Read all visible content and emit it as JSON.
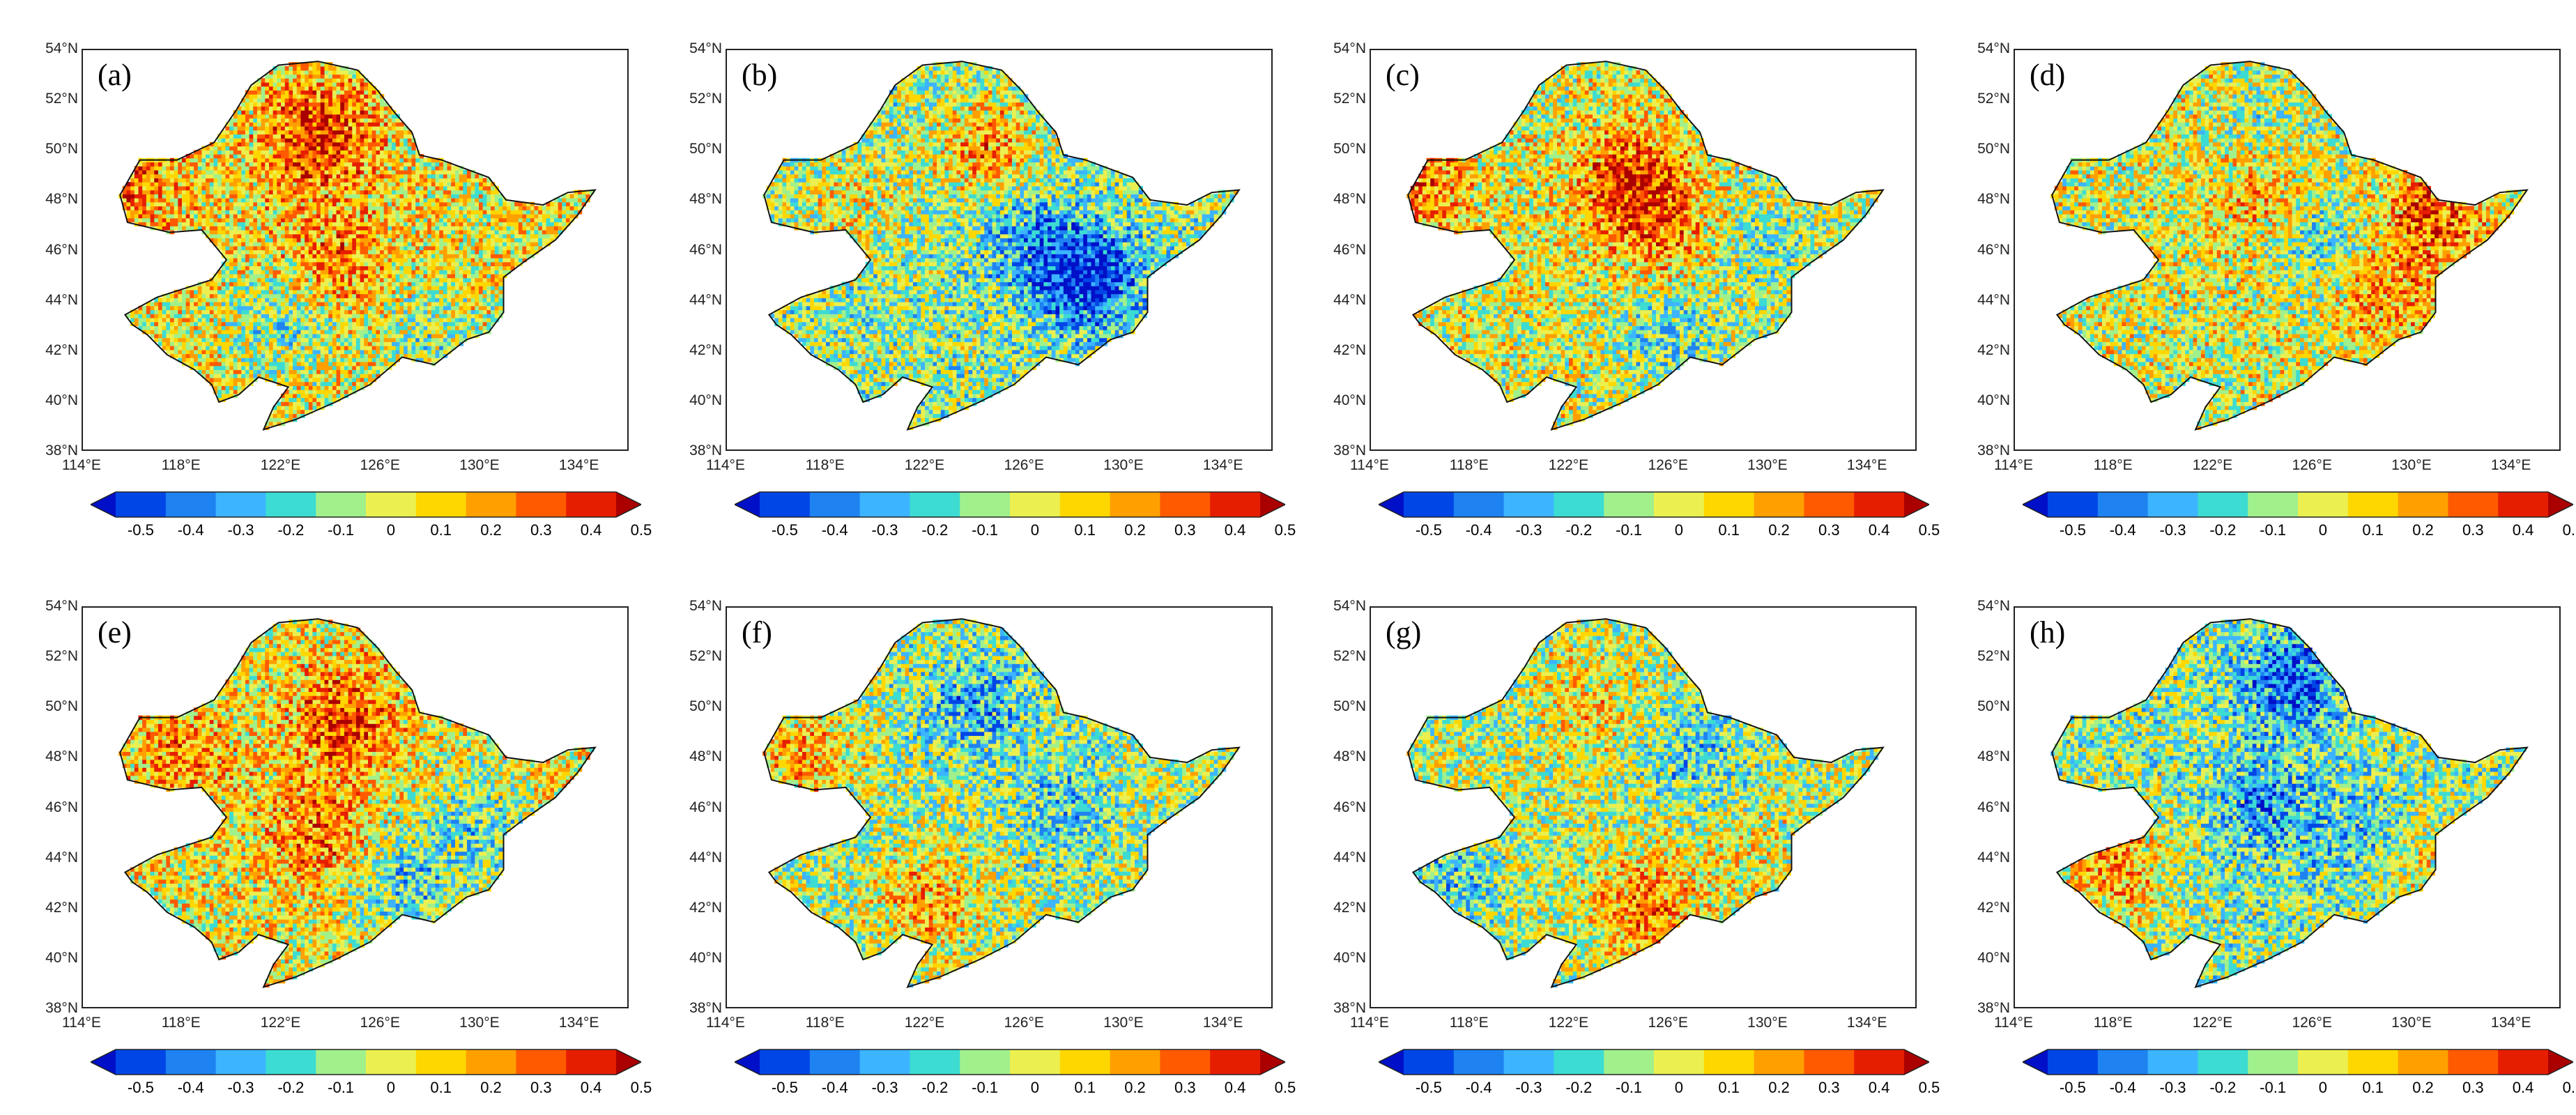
{
  "colorbar": {
    "ticks": [
      "-0.5",
      "-0.4",
      "-0.3",
      "-0.2",
      "-0.1",
      "0",
      "0.1",
      "0.2",
      "0.3",
      "0.4",
      "0.5"
    ],
    "colors": [
      "#0010c8",
      "#0046e6",
      "#1e82f0",
      "#3cb4ff",
      "#3cdcd2",
      "#a0f08c",
      "#ebf050",
      "#ffd700",
      "#ffa000",
      "#ff5a00",
      "#e61e00",
      "#aa0000"
    ],
    "extend": "both"
  },
  "axes": {
    "lat_labels": [
      "54°N",
      "52°N",
      "50°N",
      "48°N",
      "46°N",
      "44°N",
      "42°N",
      "40°N",
      "38°N"
    ],
    "lon_labels": [
      "114°E",
      "118°E",
      "122°E",
      "126°E",
      "130°E",
      "134°E"
    ],
    "lat_range": [
      38,
      54
    ],
    "lon_range": [
      114,
      136
    ]
  },
  "panels": [
    {
      "label": "(a)",
      "bias": 0.1,
      "hot": [
        [
          123.5,
          50.5,
          0.35
        ],
        [
          116,
          48.5,
          0.2
        ],
        [
          124,
          45.5,
          0.2
        ]
      ],
      "cold": [
        [
          122,
          43,
          -0.2
        ],
        [
          128,
          42.5,
          -0.15
        ]
      ]
    },
    {
      "label": "(b)",
      "bias": -0.05,
      "hot": [
        [
          124.5,
          50,
          0.3
        ],
        [
          119,
          48,
          0.15
        ]
      ],
      "cold": [
        [
          128.5,
          44.8,
          -0.45
        ],
        [
          126,
          46.5,
          -0.2
        ]
      ]
    },
    {
      "label": "(c)",
      "bias": 0.05,
      "hot": [
        [
          124.5,
          48.5,
          0.4
        ],
        [
          116,
          48.5,
          0.25
        ],
        [
          126,
          46,
          0.15
        ]
      ],
      "cold": [
        [
          126,
          42.5,
          -0.2
        ],
        [
          130,
          46,
          -0.15
        ]
      ]
    },
    {
      "label": "(d)",
      "bias": 0.05,
      "hot": [
        [
          131,
          47.5,
          0.3
        ],
        [
          124,
          48,
          0.2
        ],
        [
          129,
          44,
          0.2
        ]
      ],
      "cold": [
        [
          126,
          46.5,
          -0.2
        ],
        [
          124,
          51,
          -0.1
        ]
      ]
    },
    {
      "label": "(e)",
      "bias": 0.08,
      "hot": [
        [
          124.5,
          49.5,
          0.3
        ],
        [
          123.5,
          45,
          0.25
        ],
        [
          118,
          48,
          0.2
        ]
      ],
      "cold": [
        [
          127,
          43,
          -0.25
        ],
        [
          130,
          45,
          -0.2
        ]
      ]
    },
    {
      "label": "(f)",
      "bias": -0.02,
      "hot": [
        [
          117,
          48,
          0.25
        ],
        [
          122,
          42,
          0.25
        ],
        [
          129,
          46,
          0.1
        ]
      ],
      "cold": [
        [
          124,
          50,
          -0.25
        ],
        [
          128,
          46,
          -0.25
        ]
      ]
    },
    {
      "label": "(g)",
      "bias": 0.0,
      "hot": [
        [
          125,
          42,
          0.3
        ],
        [
          123,
          50,
          0.15
        ],
        [
          129,
          44,
          0.1
        ]
      ],
      "cold": [
        [
          117,
          43,
          -0.2
        ],
        [
          127,
          48,
          -0.2
        ]
      ]
    },
    {
      "label": "(h)",
      "bias": -0.05,
      "hot": [
        [
          118,
          43.5,
          0.3
        ],
        [
          130,
          44,
          0.15
        ]
      ],
      "cold": [
        [
          125,
          51,
          -0.35
        ],
        [
          124,
          46,
          -0.25
        ],
        [
          128,
          45,
          -0.2
        ]
      ]
    }
  ]
}
